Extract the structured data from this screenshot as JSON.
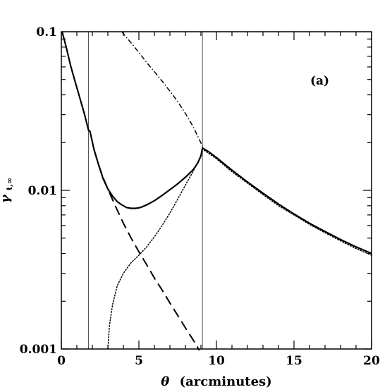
{
  "chart_data": {
    "type": "line",
    "title": "",
    "annotation": "(a)",
    "xlabel_symbol": "θ",
    "xlabel_text": "(arcminutes)",
    "ylabel_symbol": "γ",
    "ylabel_subscript": "t,∞",
    "xlim": [
      0,
      20
    ],
    "ylim": [
      0.001,
      0.1
    ],
    "yscale": "log",
    "grid": false,
    "x_ticks": [
      0,
      5,
      10,
      15,
      20
    ],
    "x_tick_labels": [
      "0",
      "5",
      "10",
      "15",
      "20"
    ],
    "y_ticks": [
      0.001,
      0.01,
      0.1
    ],
    "y_tick_labels": [
      "0.001",
      "0.01",
      "0.1"
    ],
    "vertical_lines": [
      1.75,
      9.1
    ],
    "series": [
      {
        "style": "solid",
        "x": [
          0.05,
          0.3,
          0.6,
          0.9,
          1.2,
          1.5,
          1.75,
          1.85,
          2.1,
          2.4,
          2.7,
          3.0,
          3.3,
          3.6,
          3.9,
          4.2,
          4.5,
          4.8,
          5.1,
          5.5,
          6.0,
          6.5,
          7.0,
          7.5,
          8.0,
          8.5,
          8.8,
          9.0,
          9.1,
          9.5,
          10,
          11,
          12,
          13,
          14,
          15,
          16,
          17,
          18,
          19,
          20
        ],
        "y": [
          0.1,
          0.081,
          0.061,
          0.048,
          0.038,
          0.03,
          0.024,
          0.0235,
          0.0182,
          0.0145,
          0.0118,
          0.0102,
          0.0092,
          0.0085,
          0.0081,
          0.0078,
          0.0077,
          0.0077,
          0.0078,
          0.0081,
          0.0086,
          0.0093,
          0.0101,
          0.011,
          0.0121,
          0.0135,
          0.0149,
          0.0165,
          0.0185,
          0.0175,
          0.0161,
          0.0134,
          0.0113,
          0.0096,
          0.0082,
          0.0071,
          0.0062,
          0.0055,
          0.0049,
          0.0044,
          0.004
        ]
      },
      {
        "style": "dashed",
        "x": [
          2.4,
          2.7,
          3.0,
          3.5,
          4.0,
          4.5,
          5.0,
          5.5,
          6.0,
          6.5,
          7.0,
          7.5,
          8.0,
          8.5,
          8.9
        ],
        "y": [
          0.0145,
          0.012,
          0.0102,
          0.0079,
          0.0062,
          0.005,
          0.0041,
          0.0034,
          0.0028,
          0.00235,
          0.00195,
          0.00163,
          0.00136,
          0.00114,
          0.00098
        ]
      },
      {
        "style": "dotted",
        "x": [
          3.0,
          3.1,
          3.3,
          3.6,
          4.0,
          4.5,
          5.0,
          5.5,
          6.0,
          6.5,
          7.0,
          7.5,
          8.0,
          8.5,
          9.0,
          9.1,
          9.5,
          10,
          11,
          12,
          13,
          14,
          15,
          16,
          17,
          18,
          19,
          20
        ],
        "y": [
          0.001,
          0.0014,
          0.0019,
          0.0025,
          0.003,
          0.0035,
          0.0039,
          0.0044,
          0.0051,
          0.006,
          0.0072,
          0.0088,
          0.0108,
          0.0132,
          0.0165,
          0.0182,
          0.0171,
          0.0158,
          0.0131,
          0.0111,
          0.0094,
          0.008,
          0.007,
          0.0061,
          0.0054,
          0.0048,
          0.0043,
          0.0039
        ]
      },
      {
        "style": "dashdot",
        "x": [
          3.9,
          4.5,
          5.0,
          5.5,
          6.0,
          6.5,
          7.0,
          7.5,
          8.0,
          8.5,
          9.1
        ],
        "y": [
          0.1,
          0.085,
          0.074,
          0.064,
          0.056,
          0.0488,
          0.0422,
          0.0363,
          0.0305,
          0.0252,
          0.019
        ]
      }
    ]
  }
}
